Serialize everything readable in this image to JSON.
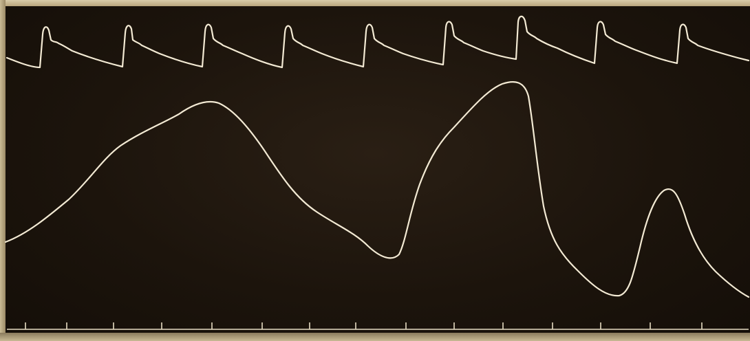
{
  "figure": {
    "description_visible_text": "",
    "colors": {
      "background": "#1c140c",
      "trace": "#f3ead4",
      "paper": "#c4b48f"
    },
    "pulse_trace": {
      "beats": 9
    },
    "slow_wave_trace": {
      "peaks": 3
    },
    "time_marker": {
      "ticks": 15
    }
  }
}
